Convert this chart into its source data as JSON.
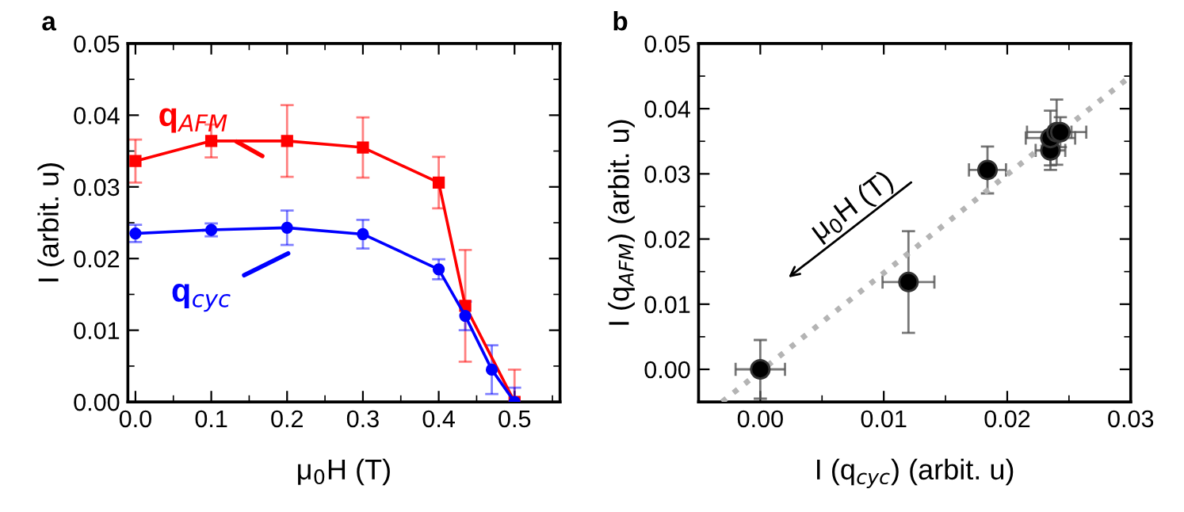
{
  "chart_data": [
    {
      "type": "line",
      "title": "a",
      "xlabel": "μ$_{0}$H (T)",
      "ylabel": "I (arbit. u)",
      "xlim": [
        -0.01,
        0.56
      ],
      "ylim": [
        0,
        0.05
      ],
      "xticks": [
        {
          "value": 0,
          "label": "0.0"
        },
        0.1,
        0.2,
        0.3,
        0.4,
        0.5
      ],
      "yticks": [
        {
          "value": 0,
          "label": "0.00"
        },
        {
          "value": 0.01,
          "label": "0.01"
        },
        {
          "value": 0.02,
          "label": "0.02"
        },
        {
          "value": 0.03,
          "label": "0.03"
        },
        {
          "value": 0.04,
          "label": "0.04"
        },
        {
          "value": 0.05,
          "label": "0.05"
        }
      ],
      "legend": false,
      "grid": false,
      "series": [
        {
          "name": "q$_{AFM}$",
          "color": "#ff0000",
          "marker": "square",
          "x": [
            0,
            0.1,
            0.2,
            0.3,
            0.4,
            0.435,
            0.5
          ],
          "values": [
            0.0336,
            0.0364,
            0.0364,
            0.0355,
            0.0306,
            0.0134,
            0
          ],
          "errors": [
            0.003,
            0.0023,
            0.005,
            0.0042,
            0.0036,
            0.0078,
            0.0045
          ]
        },
        {
          "name": "q$_{cyc}$",
          "color": "#0000ff",
          "marker": "circle",
          "x": [
            0,
            0.1,
            0.2,
            0.3,
            0.4,
            0.435,
            0.47,
            0.5
          ],
          "values": [
            0.0235,
            0.024,
            0.0243,
            0.0234,
            0.0185,
            0.012,
            0.0045,
            0
          ],
          "errors": [
            0.0012,
            0.0009,
            0.0024,
            0.002,
            0.0014,
            0.002,
            0.0034,
            0.002
          ]
        }
      ]
    },
    {
      "type": "scatter",
      "title": "b",
      "xlabel": "I (q$_{cyc}$) (arbit. u)",
      "ylabel": "I (q$_{AFM}$) (arbit. u)",
      "xlim": [
        -0.005,
        0.03
      ],
      "ylim": [
        -0.005,
        0.05
      ],
      "xticks": [
        {
          "value": 0,
          "label": "0.00"
        },
        {
          "value": 0.01,
          "label": "0.01"
        },
        {
          "value": 0.02,
          "label": "0.02"
        },
        {
          "value": 0.03,
          "label": "0.03"
        }
      ],
      "yticks": [
        {
          "value": 0,
          "label": "0.00"
        },
        {
          "value": 0.01,
          "label": "0.01"
        },
        {
          "value": 0.02,
          "label": "0.02"
        },
        {
          "value": 0.03,
          "label": "0.03"
        },
        {
          "value": 0.04,
          "label": "0.04"
        },
        {
          "value": 0.05,
          "label": "0.05"
        }
      ],
      "legend": false,
      "grid": false,
      "annotations": [
        "μ$_{0}$H (T)"
      ],
      "series": [
        {
          "type": "line",
          "color": "#b4b4b4",
          "line_style": "dotted",
          "marker": "none",
          "x": [
            -0.0031,
            0.03
          ],
          "values": [
            -0.005,
            0.045
          ]
        },
        {
          "color": "#000000",
          "marker": "circle",
          "x": [
            0,
            0.012,
            0.0184,
            0.0235,
            0.0235,
            0.024,
            0.0243
          ],
          "values": [
            0,
            0.0134,
            0.0306,
            0.0336,
            0.0355,
            0.0364,
            0.0364
          ],
          "errors": [
            0.0045,
            0.0078,
            0.0036,
            0.003,
            0.0042,
            0.005,
            0.0023
          ],
          "xerrors": [
            0.002,
            0.0021,
            0.0015,
            0.0012,
            0.002,
            0.0024,
            0.0009
          ]
        }
      ]
    }
  ]
}
